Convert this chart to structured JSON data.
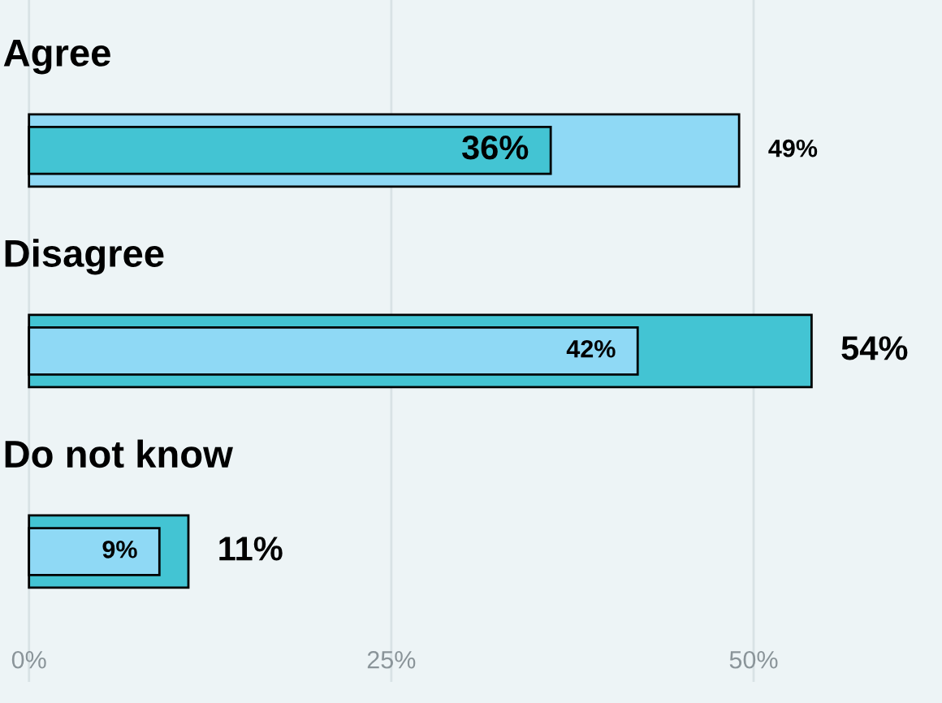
{
  "chart_data": {
    "type": "bar",
    "orientation": "horizontal",
    "categories": [
      "Agree",
      "Disagree",
      "Do not know"
    ],
    "series": [
      {
        "color": "#43c4d3",
        "values": [
          36,
          54,
          11
        ],
        "value_labels": [
          "36%",
          "54%",
          "11%"
        ]
      },
      {
        "color": "#8fd9f5",
        "values": [
          49,
          42,
          9
        ],
        "value_labels": [
          "49%",
          "42%",
          "9%"
        ]
      }
    ],
    "xlim": [
      -2,
      63
    ],
    "xticks": [
      {
        "value": 0,
        "label": "0%"
      },
      {
        "value": 25,
        "label": "25%"
      },
      {
        "value": 50,
        "label": "50%"
      }
    ],
    "grid": "x",
    "tick_labels": "x"
  }
}
